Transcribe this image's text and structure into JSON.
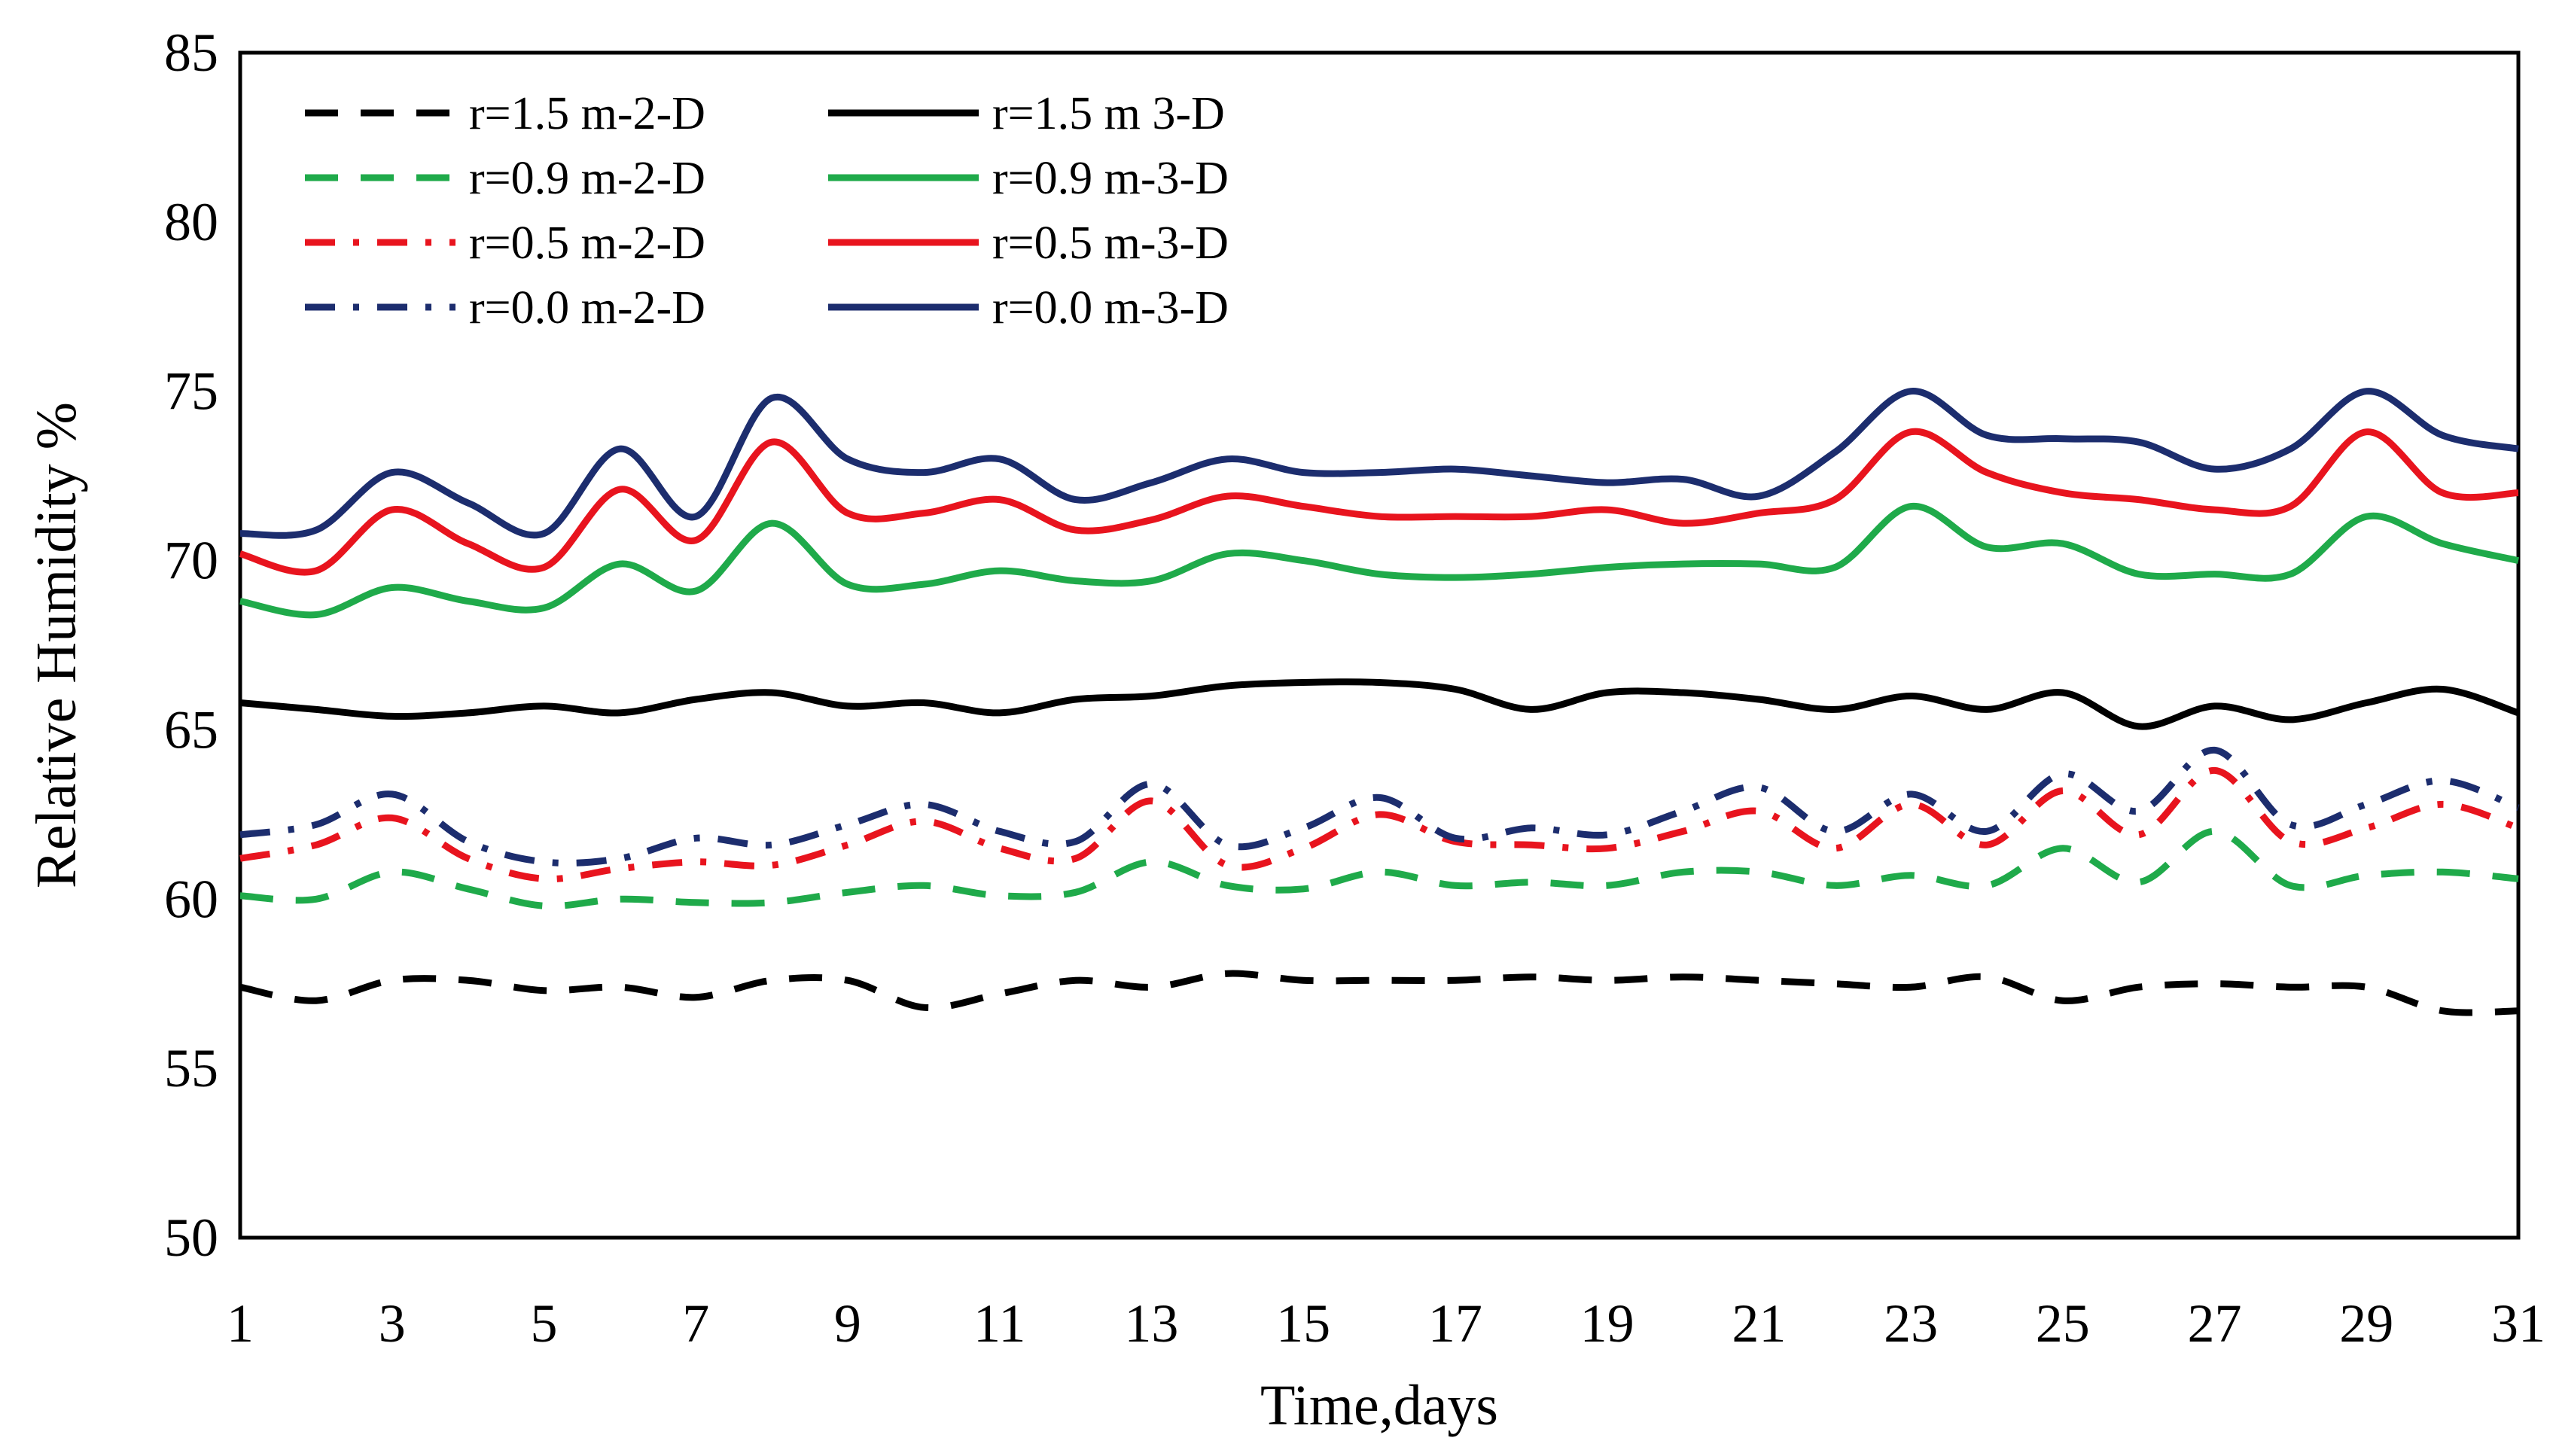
{
  "chart_data": {
    "type": "line",
    "title": "",
    "xlabel": "Time,days",
    "ylabel": "Relative Humidity %",
    "xlim": [
      1,
      31
    ],
    "ylim": [
      50,
      85
    ],
    "x_ticks": [
      1,
      3,
      5,
      7,
      9,
      11,
      13,
      15,
      17,
      19,
      21,
      23,
      25,
      27,
      29,
      31
    ],
    "y_ticks": [
      50,
      55,
      60,
      65,
      70,
      75,
      80,
      85
    ],
    "grid": false,
    "legend_position": "top-left",
    "x": [
      1,
      2,
      3,
      4,
      5,
      6,
      7,
      8,
      9,
      10,
      11,
      12,
      13,
      14,
      15,
      16,
      17,
      18,
      19,
      20,
      21,
      22,
      23,
      24,
      25,
      26,
      27,
      28,
      29,
      30,
      31
    ],
    "series": [
      {
        "name": "r=1.5 m-2-D",
        "color": "#000000",
        "dash": "dash",
        "values": [
          57.4,
          57.0,
          57.6,
          57.6,
          57.3,
          57.4,
          57.1,
          57.6,
          57.6,
          56.8,
          57.2,
          57.6,
          57.4,
          57.8,
          57.6,
          57.6,
          57.6,
          57.7,
          57.6,
          57.7,
          57.6,
          57.5,
          57.4,
          57.7,
          57.0,
          57.4,
          57.5,
          57.4,
          57.4,
          56.7,
          56.7
        ]
      },
      {
        "name": "r=1.5 m 3-D",
        "color": "#000000",
        "dash": "solid",
        "values": [
          65.8,
          65.6,
          65.4,
          65.5,
          65.7,
          65.5,
          65.9,
          66.1,
          65.7,
          65.8,
          65.5,
          65.9,
          66.0,
          66.3,
          66.4,
          66.4,
          66.2,
          65.6,
          66.1,
          66.1,
          65.9,
          65.6,
          66.0,
          65.6,
          66.1,
          65.1,
          65.7,
          65.3,
          65.8,
          66.2,
          65.5
        ]
      },
      {
        "name": "r=0.9 m-2-D",
        "color": "#1faa4a",
        "dash": "dash",
        "values": [
          60.1,
          60.0,
          60.8,
          60.3,
          59.8,
          60.0,
          59.9,
          59.9,
          60.2,
          60.4,
          60.1,
          60.2,
          61.1,
          60.4,
          60.3,
          60.8,
          60.4,
          60.5,
          60.4,
          60.8,
          60.8,
          60.4,
          60.7,
          60.4,
          61.5,
          60.5,
          62.0,
          60.4,
          60.7,
          60.8,
          60.6
        ]
      },
      {
        "name": "r=0.9 m-3-D",
        "color": "#1faa4a",
        "dash": "solid",
        "values": [
          68.8,
          68.4,
          69.2,
          68.8,
          68.6,
          69.9,
          69.1,
          71.1,
          69.3,
          69.3,
          69.7,
          69.4,
          69.4,
          70.2,
          70.0,
          69.6,
          69.5,
          69.6,
          69.8,
          69.9,
          69.9,
          69.8,
          71.6,
          70.4,
          70.5,
          69.6,
          69.6,
          69.6,
          71.3,
          70.5,
          70.0
        ]
      },
      {
        "name": "r=0.5 m-2-D",
        "color": "#e8141e",
        "dash": "dashdot",
        "values": [
          61.2,
          61.6,
          62.4,
          61.2,
          60.6,
          60.9,
          61.1,
          61.0,
          61.6,
          62.3,
          61.5,
          61.2,
          62.9,
          61.0,
          61.5,
          62.5,
          61.7,
          61.6,
          61.5,
          62.0,
          62.6,
          61.5,
          62.8,
          61.6,
          63.2,
          61.9,
          63.8,
          61.7,
          62.1,
          62.8,
          62.1
        ]
      },
      {
        "name": "r=0.5 m-3-D",
        "color": "#e8141e",
        "dash": "solid",
        "values": [
          70.2,
          69.7,
          71.5,
          70.5,
          69.8,
          72.1,
          70.6,
          73.5,
          71.4,
          71.4,
          71.8,
          70.9,
          71.2,
          71.9,
          71.6,
          71.3,
          71.3,
          71.3,
          71.5,
          71.1,
          71.4,
          71.8,
          73.8,
          72.6,
          72.0,
          71.8,
          71.5,
          71.6,
          73.8,
          72.0,
          72.0
        ]
      },
      {
        "name": "r=0.0 m-2-D",
        "color": "#1c2d6e",
        "dash": "dashdot",
        "values": [
          61.9,
          62.2,
          63.1,
          61.7,
          61.1,
          61.2,
          61.8,
          61.6,
          62.2,
          62.8,
          62.0,
          61.7,
          63.4,
          61.6,
          62.1,
          63.0,
          61.8,
          62.1,
          61.9,
          62.6,
          63.3,
          62.0,
          63.1,
          62.0,
          63.7,
          62.6,
          64.4,
          62.2,
          62.8,
          63.5,
          62.7
        ]
      },
      {
        "name": "r=0.0 m-3-D",
        "color": "#1c2d6e",
        "dash": "solid",
        "values": [
          70.8,
          70.9,
          72.6,
          71.7,
          70.8,
          73.3,
          71.3,
          74.8,
          73.0,
          72.6,
          73.0,
          71.8,
          72.3,
          73.0,
          72.6,
          72.6,
          72.7,
          72.5,
          72.3,
          72.4,
          71.9,
          73.2,
          75.0,
          73.7,
          73.6,
          73.5,
          72.7,
          73.3,
          75.0,
          73.7,
          73.3
        ]
      }
    ]
  }
}
